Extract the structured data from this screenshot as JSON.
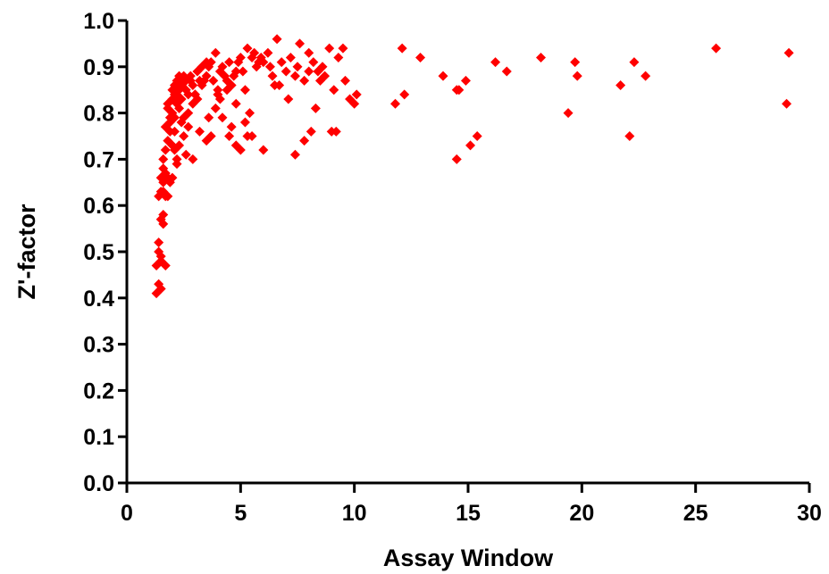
{
  "chart_data": {
    "type": "scatter",
    "title": "",
    "xlabel": "Assay Window",
    "ylabel": "Z'-factor",
    "xlim": [
      0,
      30
    ],
    "ylim": [
      0,
      1.0
    ],
    "x_ticks": [
      "0",
      "5",
      "10",
      "15",
      "20",
      "25",
      "30"
    ],
    "y_ticks": [
      "0.0",
      "0.1",
      "0.2",
      "0.3",
      "0.4",
      "0.5",
      "0.6",
      "0.7",
      "0.8",
      "0.9",
      "1.0"
    ],
    "grid": false,
    "legend": "none",
    "marker": "diamond",
    "marker_color": "#ff0000",
    "series": [
      {
        "x": [
          1.3,
          1.4,
          1.4,
          1.5,
          1.5,
          1.5,
          1.6,
          1.4,
          1.5,
          1.6,
          1.5,
          1.6,
          1.7,
          1.6,
          1.7,
          1.8,
          1.7,
          1.6,
          1.8,
          1.9,
          1.7,
          1.8,
          1.9,
          2.0,
          1.8,
          2.0,
          2.1,
          1.9,
          2.0,
          2.1,
          2.2,
          2.0,
          2.1,
          2.2,
          2.3,
          2.1,
          2.2,
          2.3,
          2.4,
          2.2,
          2.3,
          2.5,
          2.4,
          2.3,
          2.5,
          2.6,
          2.4,
          2.6,
          2.7,
          2.8,
          2.5,
          2.7,
          2.9,
          2.6,
          2.8,
          3.0,
          2.9,
          3.1,
          3.0,
          3.2,
          3.3,
          3.1,
          3.4,
          3.5,
          3.3,
          3.6,
          3.7,
          3.5,
          3.8,
          3.9,
          3.6,
          4.0,
          4.1,
          3.9,
          4.2,
          4.3,
          4.0,
          4.4,
          4.5,
          4.2,
          4.6,
          4.7,
          4.4,
          4.8,
          4.9,
          4.6,
          5.0,
          5.1,
          4.8,
          5.3,
          5.5,
          5.2,
          5.6,
          5.8,
          5.4,
          5.7,
          5.9,
          6.0,
          6.2,
          6.3,
          6.5,
          6.6,
          6.8,
          7.0,
          7.2,
          7.4,
          7.6,
          7.8,
          8.0,
          8.2,
          8.4,
          8.5,
          8.7,
          8.9,
          9.1,
          9.3,
          9.5,
          9.8,
          10.0,
          10.1,
          5.0,
          5.5,
          6.0,
          7.4,
          7.8,
          8.1,
          9.0,
          9.2,
          8.3,
          4.8,
          5.2,
          4.5,
          3.7,
          3.5,
          2.9,
          2.2,
          2.0,
          1.8,
          1.6,
          1.4,
          1.3,
          1.5,
          6.7,
          7.1,
          7.5,
          8.0,
          8.6,
          9.6,
          6.4,
          5.3,
          4.1,
          3.2,
          2.7,
          2.4,
          2.1,
          1.9,
          1.7,
          11.8,
          12.1,
          12.2,
          12.9,
          13.9,
          14.5,
          14.6,
          14.9,
          14.5,
          15.1,
          15.4,
          16.2,
          16.7,
          18.2,
          19.4,
          19.7,
          19.8,
          21.7,
          22.1,
          22.3,
          22.8,
          25.9,
          29.0,
          29.1
        ],
        "y": [
          0.47,
          0.52,
          0.5,
          0.48,
          0.49,
          0.57,
          0.58,
          0.62,
          0.63,
          0.63,
          0.66,
          0.68,
          0.67,
          0.7,
          0.72,
          0.74,
          0.62,
          0.65,
          0.66,
          0.79,
          0.77,
          0.81,
          0.76,
          0.8,
          0.82,
          0.83,
          0.84,
          0.78,
          0.85,
          0.86,
          0.87,
          0.73,
          0.76,
          0.82,
          0.88,
          0.79,
          0.84,
          0.85,
          0.87,
          0.7,
          0.73,
          0.88,
          0.83,
          0.81,
          0.79,
          0.87,
          0.86,
          0.85,
          0.84,
          0.87,
          0.75,
          0.77,
          0.86,
          0.71,
          0.88,
          0.84,
          0.82,
          0.89,
          0.84,
          0.87,
          0.9,
          0.83,
          0.87,
          0.91,
          0.86,
          0.9,
          0.91,
          0.88,
          0.87,
          0.93,
          0.79,
          0.85,
          0.89,
          0.81,
          0.9,
          0.88,
          0.84,
          0.87,
          0.91,
          0.79,
          0.86,
          0.88,
          0.85,
          0.89,
          0.91,
          0.77,
          0.92,
          0.89,
          0.82,
          0.94,
          0.92,
          0.85,
          0.93,
          0.91,
          0.8,
          0.9,
          0.92,
          0.91,
          0.93,
          0.9,
          0.86,
          0.96,
          0.91,
          0.89,
          0.92,
          0.88,
          0.95,
          0.87,
          0.93,
          0.91,
          0.89,
          0.87,
          0.88,
          0.94,
          0.85,
          0.92,
          0.94,
          0.83,
          0.82,
          0.84,
          0.72,
          0.75,
          0.72,
          0.71,
          0.74,
          0.76,
          0.76,
          0.76,
          0.81,
          0.73,
          0.78,
          0.75,
          0.75,
          0.74,
          0.7,
          0.69,
          0.66,
          0.62,
          0.56,
          0.43,
          0.41,
          0.42,
          0.86,
          0.83,
          0.9,
          0.89,
          0.9,
          0.87,
          0.88,
          0.75,
          0.83,
          0.76,
          0.8,
          0.78,
          0.72,
          0.65,
          0.47,
          0.82,
          0.94,
          0.84,
          0.92,
          0.88,
          0.7,
          0.85,
          0.87,
          0.85,
          0.73,
          0.75,
          0.91,
          0.89,
          0.92,
          0.8,
          0.91,
          0.88,
          0.86,
          0.75,
          0.91,
          0.88,
          0.94,
          0.82,
          0.93
        ]
      }
    ]
  }
}
